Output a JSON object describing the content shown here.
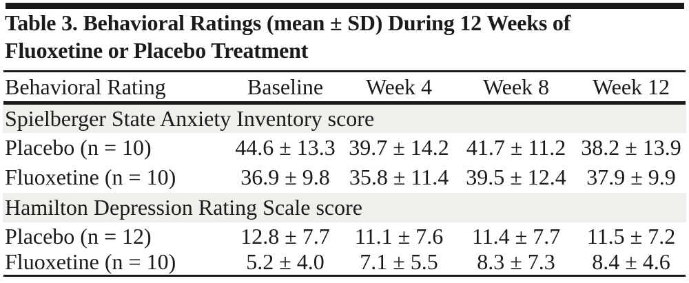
{
  "title": {
    "line1": "Table 3. Behavioral Ratings (mean ± SD) During 12 Weeks of",
    "line2": "Fluoxetine or Placebo Treatment"
  },
  "table": {
    "columns": [
      "Behavioral Rating",
      "Baseline",
      "Week 4",
      "Week 8",
      "Week 12"
    ],
    "sections": [
      {
        "header": "Spielberger State Anxiety Inventory score",
        "rows": [
          {
            "label": "Placebo (n = 10)",
            "values": [
              "44.6 ± 13.3",
              "39.7 ± 14.2",
              "41.7 ± 11.2",
              "38.2 ± 13.9"
            ]
          },
          {
            "label": "Fluoxetine (n = 10)",
            "values": [
              "36.9 ± 9.8",
              "35.8 ± 11.4",
              "39.5 ± 12.4",
              "37.9 ± 9.9"
            ]
          }
        ]
      },
      {
        "header": "Hamilton Depression Rating Scale score",
        "rows": [
          {
            "label": "Placebo (n = 12)",
            "values": [
              "12.8 ± 7.7",
              "11.1 ± 7.6",
              "11.4 ± 7.7",
              "11.5 ± 7.2"
            ]
          },
          {
            "label": "Fluoxetine (n = 10)",
            "values": [
              "5.2 ± 4.0",
              "7.1 ± 5.5",
              "8.3 ± 7.3",
              "8.4 ± 4.6"
            ]
          }
        ]
      }
    ]
  },
  "colors": {
    "rule_black": "#1a1a1a",
    "section_band_gray": "#efefec",
    "text": "#1b1b1b",
    "background": "#ffffff"
  }
}
